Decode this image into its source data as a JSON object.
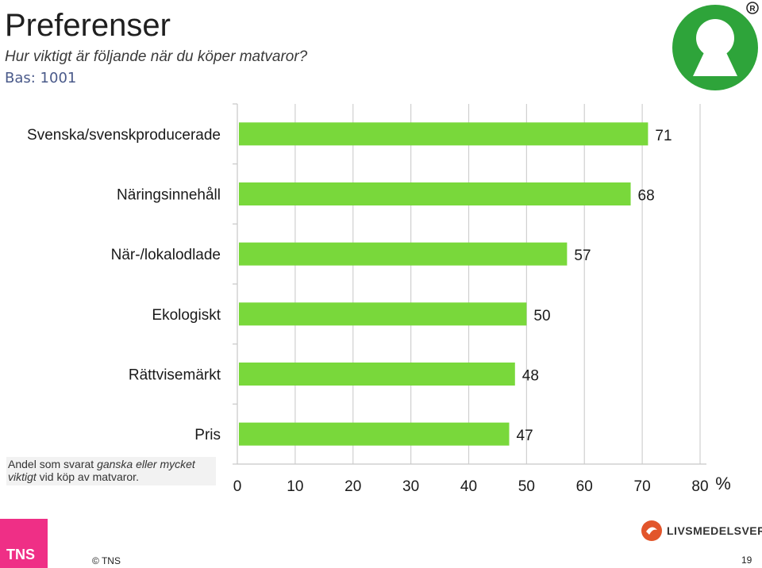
{
  "header": {
    "title": "Preferenser",
    "subtitle": "Hur viktigt är följande när du köper matvaror?",
    "base": "Bas: 1001"
  },
  "note": {
    "part1": "Andel som svarat ",
    "part2": "ganska eller mycket viktigt",
    "part3": " vid köp av matvaror."
  },
  "footer": {
    "copyright": "© TNS",
    "page_number": "19",
    "tns_logo_text": "TNS",
    "partner_logo_text": "LIVSMEDELSVERKET"
  },
  "colors": {
    "bar": "#79d83b",
    "brand_green": "#2ea43a",
    "tns_pink": "#ef2f86",
    "partner_orange": "#e2552b"
  },
  "chart_data": {
    "type": "bar",
    "orientation": "horizontal",
    "categories": [
      "Svenska/svenskproducerade",
      "Näringsinnehåll",
      "När-/lokalodlade",
      "Ekologiskt",
      "Rättvisemärkt",
      "Pris"
    ],
    "values": [
      71,
      68,
      57,
      50,
      48,
      47
    ],
    "xlim": [
      0,
      80
    ],
    "xticks": [
      0,
      10,
      20,
      30,
      40,
      50,
      60,
      70,
      80
    ],
    "x_unit": "%",
    "grid": true
  }
}
